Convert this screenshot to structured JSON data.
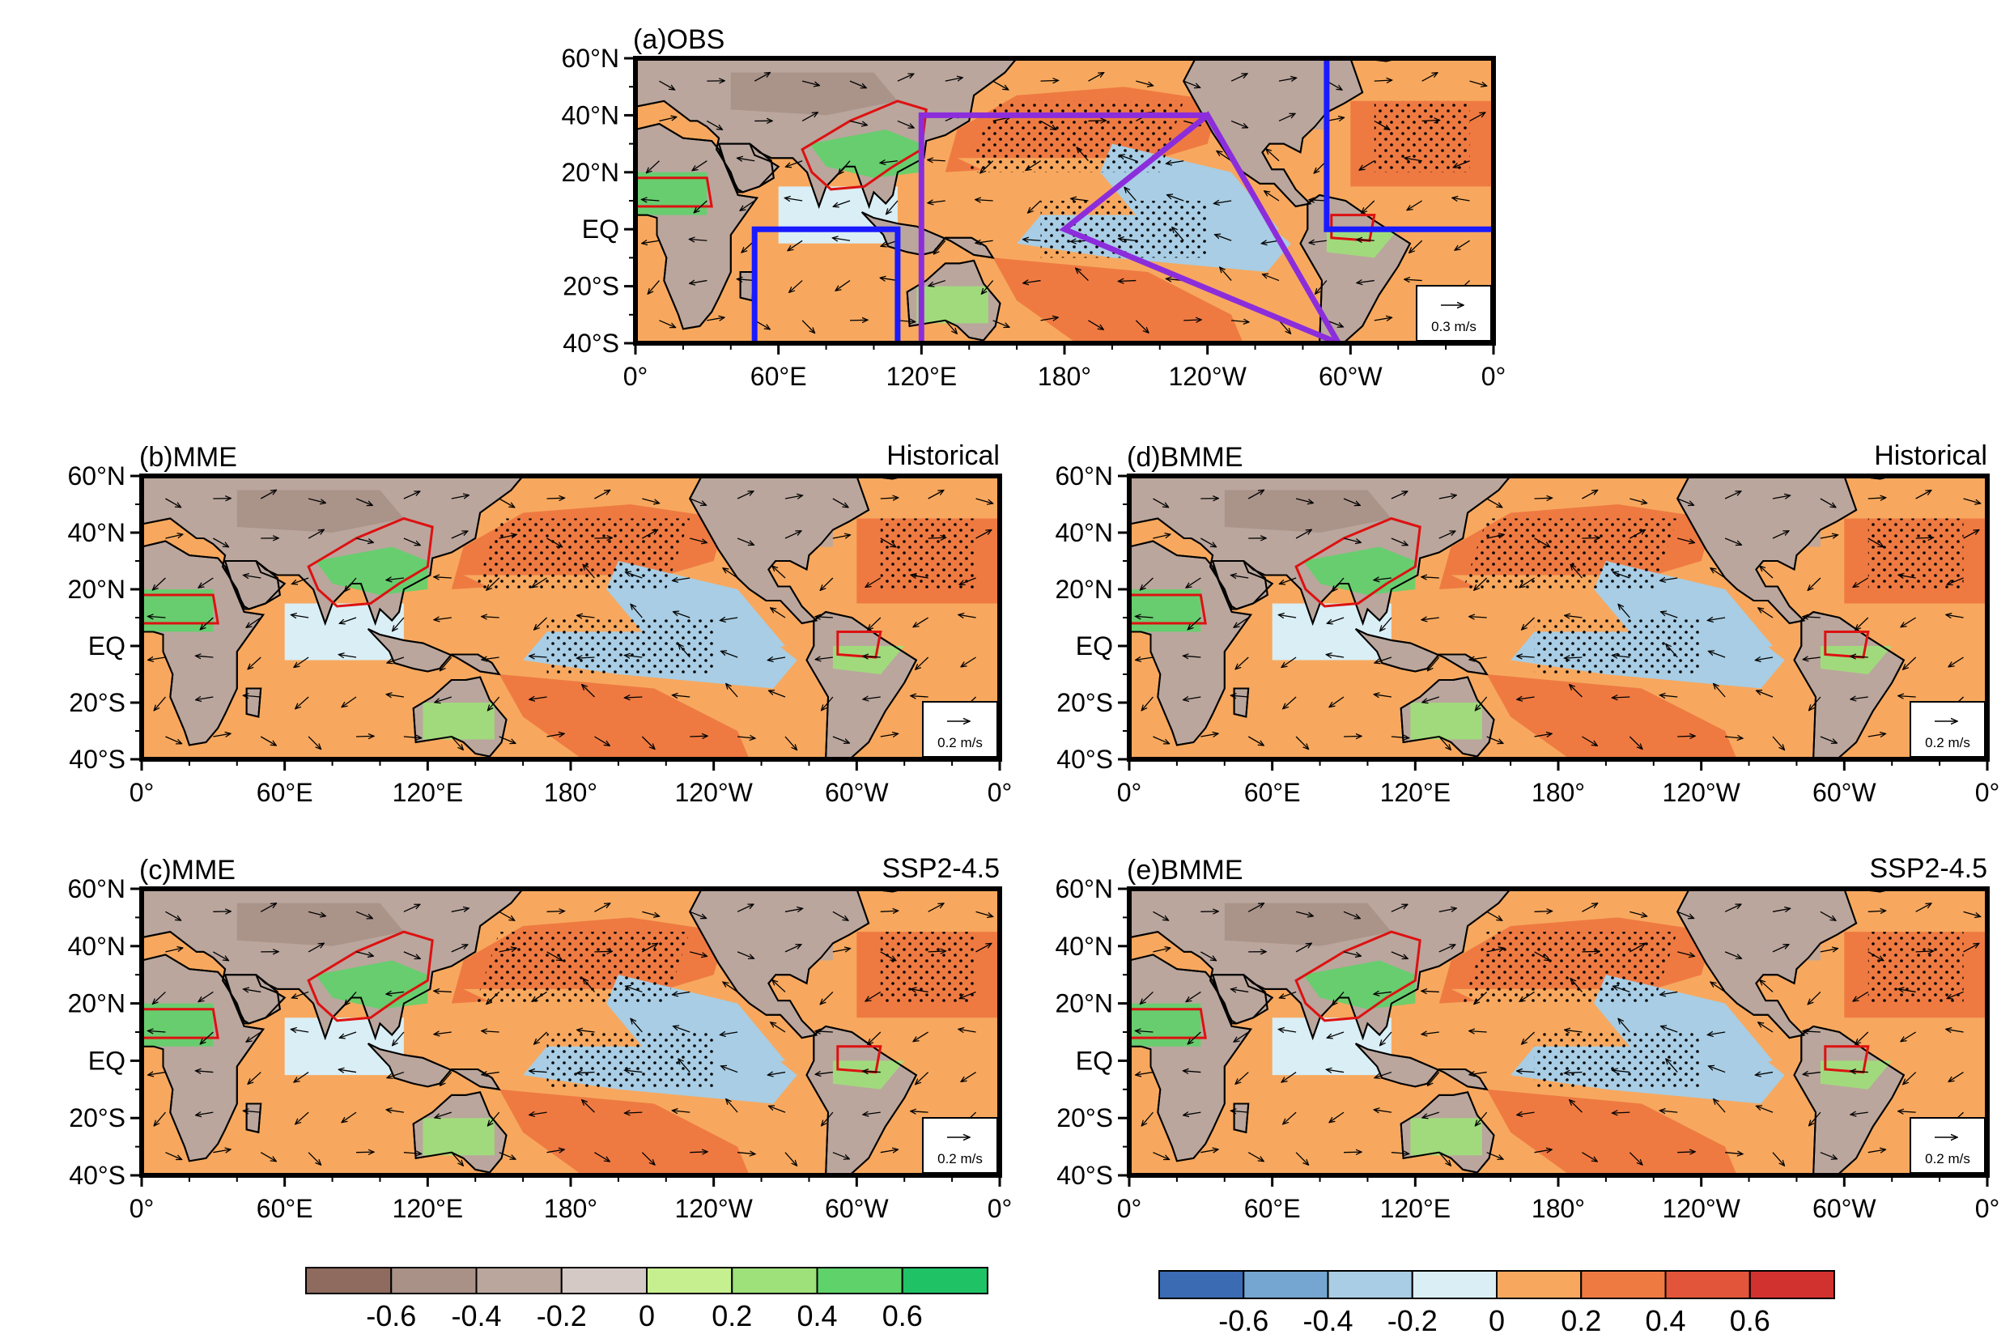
{
  "figure": {
    "panels": [
      {
        "id": "a",
        "title": "(a)OBS",
        "scenario": "",
        "ref_vector": "0.3 m/s",
        "boxes": true
      },
      {
        "id": "b",
        "title": "(b)MME",
        "scenario": "Historical",
        "ref_vector": "0.2 m/s",
        "boxes": false
      },
      {
        "id": "c",
        "title": "(c)MME",
        "scenario": "SSP2-4.5",
        "ref_vector": "0.2 m/s",
        "boxes": false
      },
      {
        "id": "d",
        "title": "(d)BMME",
        "scenario": "Historical",
        "ref_vector": "0.2 m/s",
        "boxes": false
      },
      {
        "id": "e",
        "title": "(e)BMME",
        "scenario": "SSP2-4.5",
        "ref_vector": "0.2 m/s",
        "boxes": false
      }
    ],
    "lat_ticks": [
      "60°N",
      "40°N",
      "20°N",
      "EQ",
      "20°S",
      "40°S"
    ],
    "lat_values": [
      60,
      40,
      20,
      0,
      -20,
      -40
    ],
    "lon_ticks": [
      "0°",
      "60°E",
      "120°E",
      "180°",
      "120°W",
      "60°W",
      "0°"
    ],
    "lon_values": [
      0,
      60,
      120,
      180,
      240,
      300,
      360
    ],
    "extent": {
      "lon": [
        0,
        360
      ],
      "lat": [
        -40,
        60
      ]
    },
    "colorbars": [
      {
        "name": "land",
        "labels": [
          "-0.6",
          "-0.4",
          "-0.2",
          "0",
          "0.2",
          "0.4",
          "0.6"
        ],
        "colors": [
          "#8f6a5e",
          "#a99187",
          "#baa69d",
          "#d5c9c6",
          "#c6ef8f",
          "#9ee07a",
          "#5fd26a",
          "#1fc264"
        ]
      },
      {
        "name": "ocean",
        "labels": [
          "-0.6",
          "-0.4",
          "-0.2",
          "0",
          "0.2",
          "0.4",
          "0.6"
        ],
        "colors": [
          "#3b6bb3",
          "#74a6d1",
          "#a8cde4",
          "#d9eef5",
          "#f7a85e",
          "#ee7a42",
          "#e3553a",
          "#d1322f"
        ]
      }
    ],
    "colors": {
      "frame": "#000000",
      "monsoon_contour": "#dd1111",
      "box_blue": "#1a1aff",
      "box_purple": "#8c2ddb"
    }
  }
}
